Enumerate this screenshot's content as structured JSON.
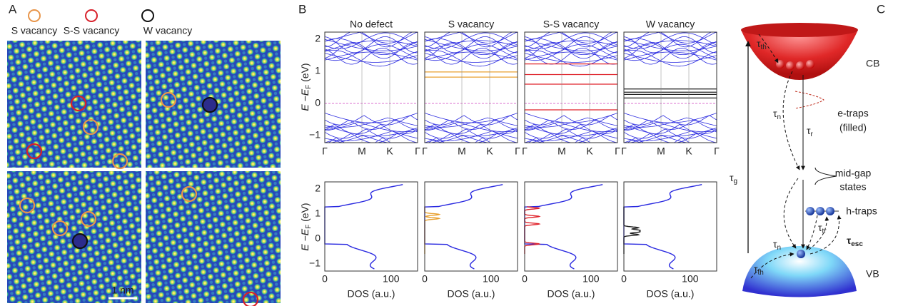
{
  "panel_a": {
    "label": "A",
    "legend": [
      {
        "label": "S vacancy",
        "color": "#e8954a"
      },
      {
        "label": "S-S vacancy",
        "color": "#d8202a"
      },
      {
        "label": "W vacancy",
        "color": "#111111"
      }
    ],
    "scale_bar": "1 nm"
  },
  "panel_b": {
    "label": "B",
    "columns": [
      {
        "title": "No defect",
        "color": "#3030e0"
      },
      {
        "title": "S vacancy",
        "color": "#e8a030"
      },
      {
        "title": "S-S vacancy",
        "color": "#e0242c"
      },
      {
        "title": "W vacancy",
        "color": "#222222"
      }
    ],
    "y_label": {
      "text": "E −E",
      "sub": "F",
      "unit": " (eV)"
    },
    "y_ticks": [
      "2",
      "1",
      "0",
      "−1"
    ],
    "k_points": [
      "Γ",
      "M",
      "K",
      "Γ"
    ],
    "dos_ticks": [
      "0",
      "100"
    ],
    "dos_label": "DOS (a.u.)"
  },
  "panel_c": {
    "label": "C",
    "cb": "CB",
    "vb": "VB",
    "e_traps": [
      "e-traps",
      "(filled)"
    ],
    "mid_gap": [
      "mid-gap",
      "states"
    ],
    "h_traps": "h-traps",
    "taus": [
      {
        "symbol": "τ",
        "sub": "th"
      },
      {
        "symbol": "τ",
        "sub": "n"
      },
      {
        "symbol": "τ",
        "sub": "r"
      },
      {
        "symbol": "τ",
        "sub": "g"
      },
      {
        "symbol": "τ",
        "sub": "n"
      },
      {
        "symbol": "τ",
        "sub": "tr"
      },
      {
        "symbol": "τ",
        "sub": "esc"
      },
      {
        "symbol": "τ",
        "sub": "th"
      }
    ]
  }
}
